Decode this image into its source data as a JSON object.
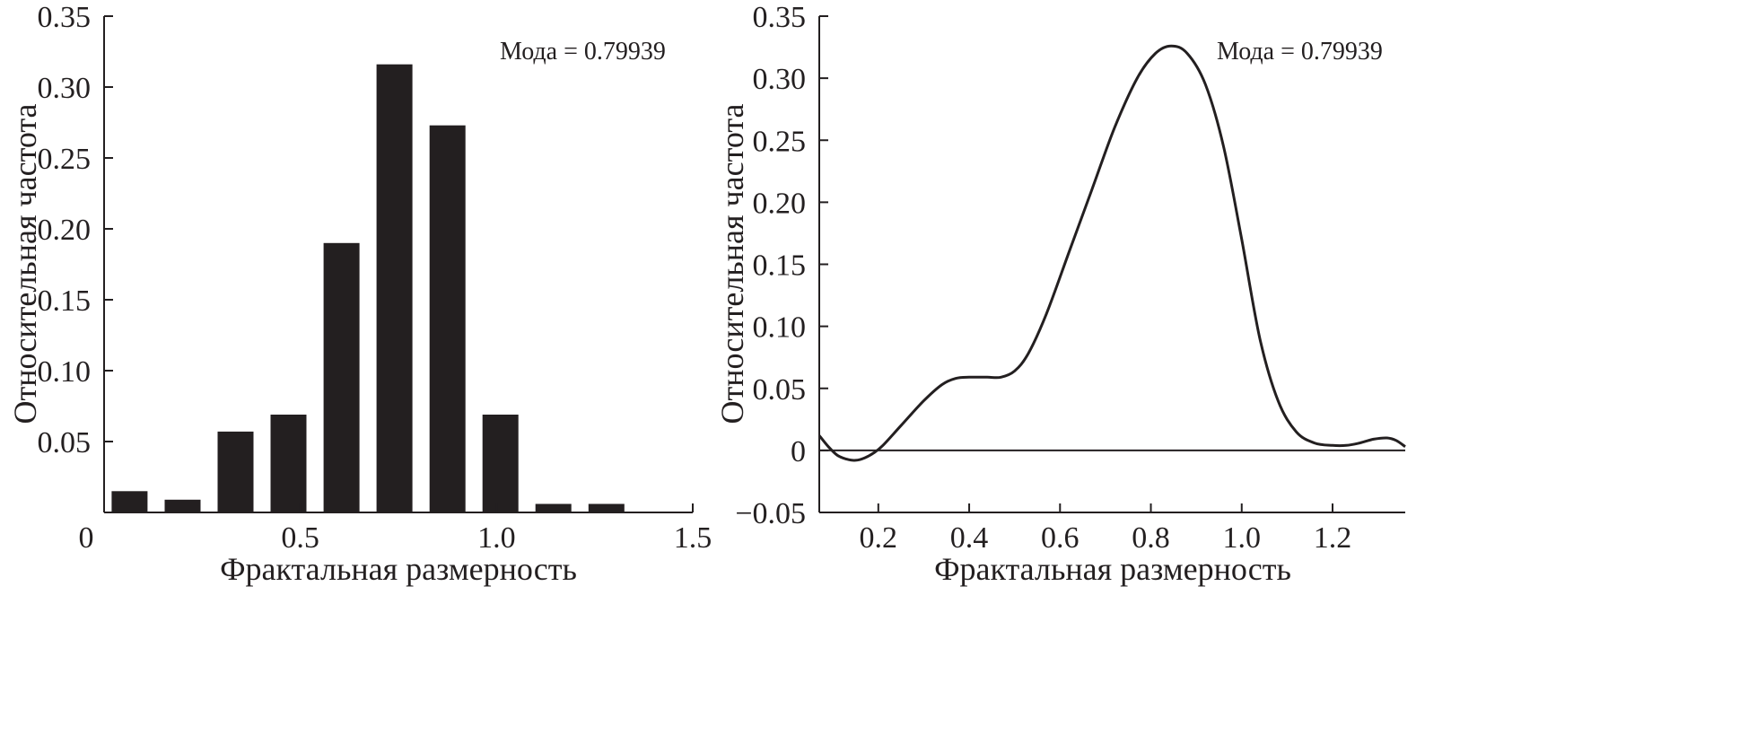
{
  "chart_data": [
    {
      "type": "bar",
      "x_centers": [
        0.065,
        0.2,
        0.335,
        0.47,
        0.605,
        0.74,
        0.875,
        1.01,
        1.145,
        1.28
      ],
      "values": [
        0.015,
        0.009,
        0.057,
        0.069,
        0.19,
        0.316,
        0.273,
        0.069,
        0.006,
        0.006
      ],
      "xlim": [
        0,
        1.5
      ],
      "ylim": [
        0,
        0.35
      ],
      "x_ticks": [
        0,
        0.5,
        1.0,
        1.5
      ],
      "x_tick_labels": [
        "0",
        "0.5",
        "1.0",
        "1.5"
      ],
      "y_ticks": [
        0.05,
        0.1,
        0.15,
        0.2,
        0.25,
        0.3,
        0.35
      ],
      "y_tick_labels": [
        "0.05",
        "0.10",
        "0.15",
        "0.20",
        "0.25",
        "0.30",
        "0.35"
      ],
      "xlabel": "Фрактальная размерность",
      "ylabel": "Относительная частота",
      "annotation": "Мода = 0.79939"
    },
    {
      "type": "line",
      "x": [
        0.07,
        0.09,
        0.11,
        0.13,
        0.15,
        0.17,
        0.19,
        0.21,
        0.25,
        0.3,
        0.34,
        0.37,
        0.4,
        0.44,
        0.47,
        0.5,
        0.53,
        0.57,
        0.62,
        0.67,
        0.72,
        0.77,
        0.81,
        0.845,
        0.88,
        0.92,
        0.96,
        1.0,
        1.04,
        1.08,
        1.12,
        1.16,
        1.2,
        1.23,
        1.26,
        1.29,
        1.32,
        1.34,
        1.36
      ],
      "y": [
        0.012,
        0.003,
        -0.004,
        -0.007,
        -0.008,
        -0.006,
        -0.002,
        0.004,
        0.02,
        0.04,
        0.053,
        0.058,
        0.059,
        0.059,
        0.059,
        0.064,
        0.078,
        0.11,
        0.16,
        0.21,
        0.26,
        0.3,
        0.32,
        0.326,
        0.32,
        0.295,
        0.245,
        0.17,
        0.09,
        0.04,
        0.015,
        0.006,
        0.004,
        0.004,
        0.006,
        0.009,
        0.01,
        0.008,
        0.003
      ],
      "xlim": [
        0.07,
        1.36
      ],
      "ylim": [
        -0.05,
        0.35
      ],
      "x_ticks": [
        0.2,
        0.4,
        0.6,
        0.8,
        1.0,
        1.2
      ],
      "x_tick_labels": [
        "0.2",
        "0.4",
        "0.6",
        "0.8",
        "1.0",
        "1.2"
      ],
      "y_ticks": [
        -0.05,
        0,
        0.05,
        0.1,
        0.15,
        0.2,
        0.25,
        0.3,
        0.35
      ],
      "y_tick_labels": [
        "−0.05",
        "0",
        "0.05",
        "0.10",
        "0.15",
        "0.20",
        "0.25",
        "0.30",
        "0.35"
      ],
      "xlabel": "Фрактальная размерность",
      "ylabel": "Относительная частота",
      "annotation": "Мода = 0.79939"
    }
  ],
  "colors": {
    "ink": "#231f20",
    "background": "#ffffff"
  }
}
